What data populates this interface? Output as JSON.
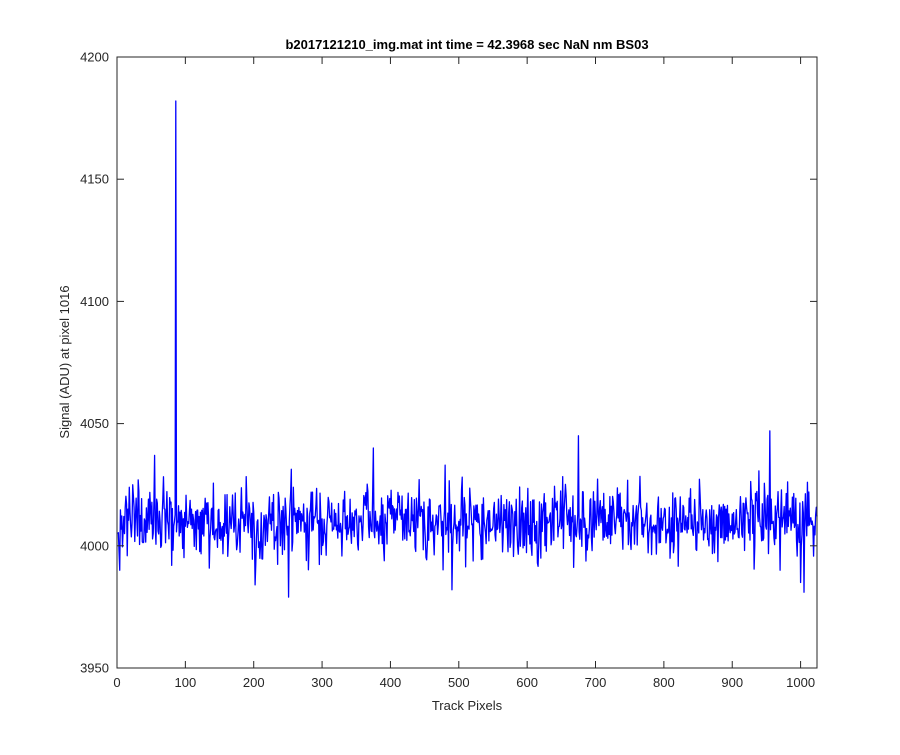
{
  "figure": {
    "background": "#ffffff",
    "axes_background": "#ffffff",
    "axis_color": "#262626",
    "line_color": "#0000ff"
  },
  "chart_data": {
    "type": "line",
    "title": "b2017121210_img.mat int time = 42.3968 sec  NaN nm BS03",
    "xlabel": "Track Pixels",
    "ylabel": "Signal (ADU) at pixel 1016",
    "xlim": [
      0,
      1024
    ],
    "ylim": [
      3950,
      4200
    ],
    "xticks": [
      0,
      100,
      200,
      300,
      400,
      500,
      600,
      700,
      800,
      900,
      1000
    ],
    "yticks": [
      3950,
      4000,
      4050,
      4100,
      4150,
      4200
    ],
    "grid": false,
    "legend": "none",
    "series": [
      {
        "color": "#0000ff",
        "x_start": 1,
        "x_step": 1,
        "noise_baseline": 4010,
        "values_at_x": [
          [
            1,
            4005
          ],
          [
            4,
            3990
          ],
          [
            10,
            4012
          ],
          [
            20,
            4008
          ],
          [
            30,
            4004
          ],
          [
            40,
            4011
          ],
          [
            50,
            4009
          ],
          [
            55,
            4037
          ],
          [
            60,
            4006
          ],
          [
            70,
            4015
          ],
          [
            80,
            3992
          ],
          [
            86,
            4182
          ],
          [
            88,
            4010
          ],
          [
            100,
            4008
          ],
          [
            120,
            4012
          ],
          [
            150,
            4003
          ],
          [
            200,
            4014
          ],
          [
            202,
            3984
          ],
          [
            250,
            4008
          ],
          [
            251,
            3979
          ],
          [
            300,
            4011
          ],
          [
            350,
            4015
          ],
          [
            375,
            4040
          ],
          [
            380,
            4006
          ],
          [
            400,
            4013
          ],
          [
            450,
            4009
          ],
          [
            480,
            4033
          ],
          [
            490,
            3982
          ],
          [
            500,
            4010
          ],
          [
            550,
            4008
          ],
          [
            600,
            4012
          ],
          [
            650,
            4007
          ],
          [
            675,
            4045
          ],
          [
            700,
            4011
          ],
          [
            750,
            4009
          ],
          [
            800,
            4012
          ],
          [
            850,
            4008
          ],
          [
            900,
            4013
          ],
          [
            955,
            4047
          ],
          [
            960,
            4010
          ],
          [
            970,
            3990
          ],
          [
            1000,
            3985
          ],
          [
            1005,
            3981
          ],
          [
            1010,
            4026
          ],
          [
            1020,
            4008
          ],
          [
            1024,
            4012
          ]
        ]
      }
    ]
  }
}
